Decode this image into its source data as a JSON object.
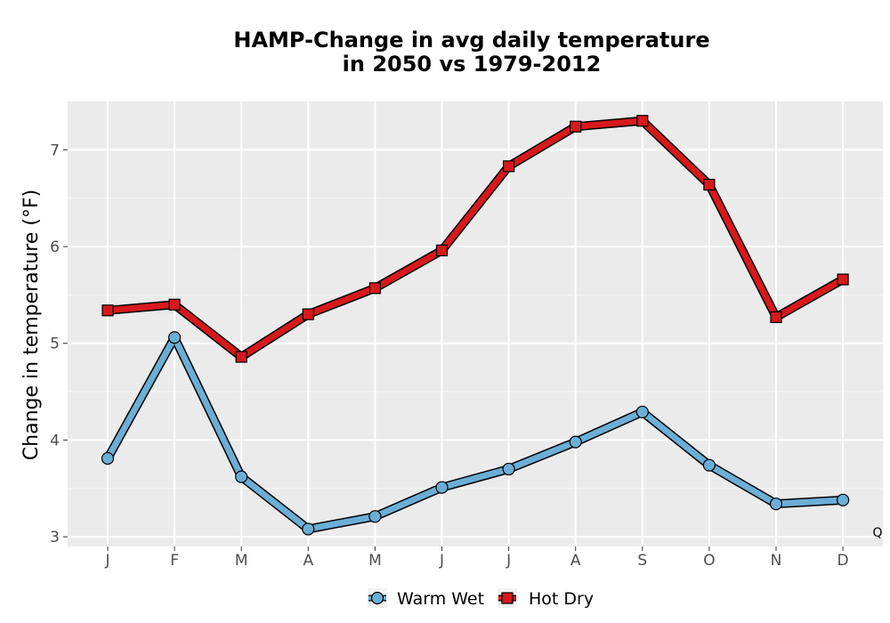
{
  "chart_data": {
    "type": "line",
    "title_line1": "HAMP-Change in avg daily temperature",
    "title_line2": "in 2050 vs 1979-2012",
    "xlabel": "",
    "ylabel": "Change in temperature (°F)",
    "categories": [
      "J",
      "F",
      "M",
      "A",
      "M",
      "J",
      "J",
      "A",
      "S",
      "O",
      "N",
      "D"
    ],
    "yticks": [
      "3",
      "4",
      "5",
      "6",
      "7"
    ],
    "ylim": [
      2.9,
      7.5
    ],
    "grid": true,
    "legend_position": "bottom",
    "corner_note": "Q",
    "series": [
      {
        "name": "Warm Wet",
        "color": "#6baed6",
        "marker": "circle",
        "values": [
          3.81,
          5.06,
          3.62,
          3.08,
          3.21,
          3.51,
          3.7,
          3.98,
          4.29,
          3.74,
          3.34,
          3.38
        ]
      },
      {
        "name": "Hot Dry",
        "color": "#d7191c",
        "marker": "square",
        "values": [
          5.34,
          5.4,
          4.86,
          5.3,
          5.57,
          5.96,
          6.83,
          7.24,
          7.3,
          6.64,
          5.27,
          5.66
        ]
      }
    ]
  }
}
